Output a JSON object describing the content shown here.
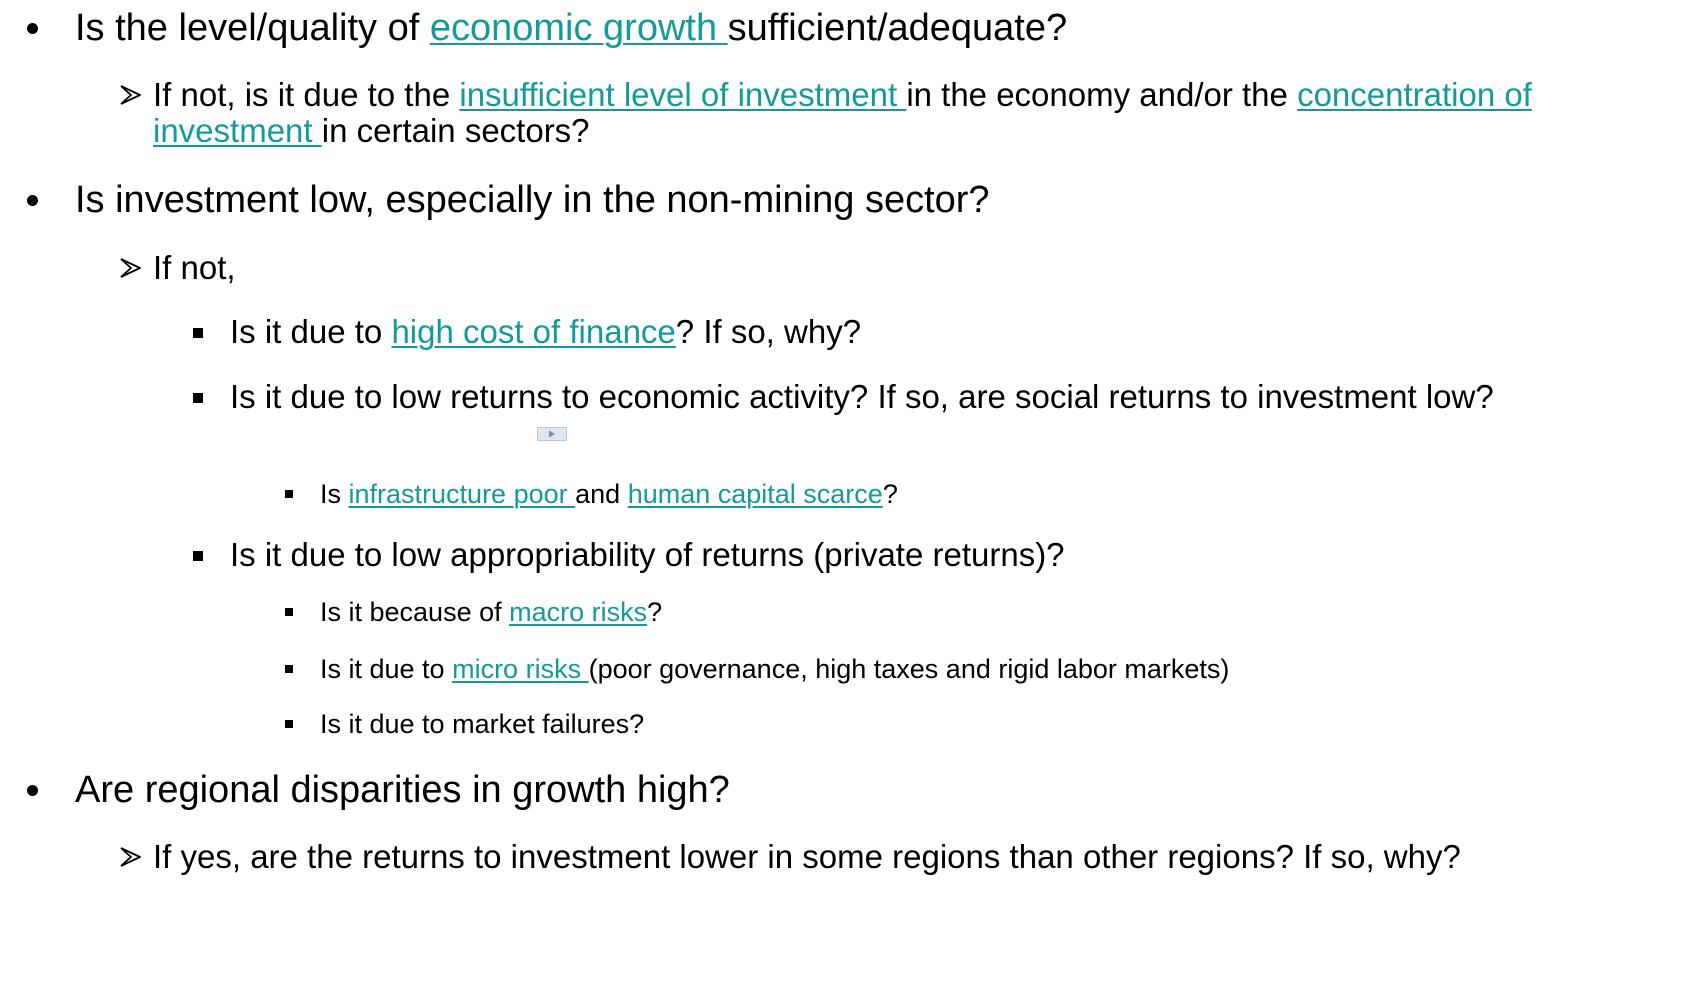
{
  "items": [
    {
      "level": 1,
      "segments": [
        {
          "text": "Is the level/quality of "
        },
        {
          "text": "economic growth ",
          "link": true
        },
        {
          "text": "sufficient/adequate?"
        }
      ]
    },
    {
      "level": 2,
      "segments": [
        {
          "text": "If not, is it due to the "
        },
        {
          "text": "insufficient level of investment ",
          "link": true
        },
        {
          "text": "in the economy and/or the "
        },
        {
          "text": "concentration of investment ",
          "link": true
        },
        {
          "text": "in certain sectors?"
        }
      ]
    },
    {
      "level": 1,
      "segments": [
        {
          "text": "Is investment low, especially in the non-mining sector?"
        }
      ]
    },
    {
      "level": 2,
      "segments": [
        {
          "text": "If not,"
        }
      ]
    },
    {
      "level": 3,
      "segments": [
        {
          "text": "Is it due to "
        },
        {
          "text": "high cost of finance",
          "link": true
        },
        {
          "text": "? If so, why?"
        }
      ]
    },
    {
      "level": 3,
      "segments": [
        {
          "text": "Is it due to  low returns to  economic activity? If so, are social returns to investment low?"
        }
      ]
    },
    {
      "level": 4,
      "segments": [
        {
          "text": "Is "
        },
        {
          "text": "infrastructure poor ",
          "link": true
        },
        {
          "text": "and "
        },
        {
          "text": "human capital scarce",
          "link": true
        },
        {
          "text": "?"
        }
      ]
    },
    {
      "level": 3,
      "segments": [
        {
          "text": "Is it due to low appropriability of returns (private returns)?"
        }
      ]
    },
    {
      "level": 4,
      "segments": [
        {
          "text": "Is it  because of "
        },
        {
          "text": "macro risks",
          "link": true
        },
        {
          "text": "?"
        }
      ]
    },
    {
      "level": 4,
      "segments": [
        {
          "text": "Is it due to "
        },
        {
          "text": "micro risks ",
          "link": true
        },
        {
          "text": "(poor governance, high taxes and rigid labor markets)"
        }
      ]
    },
    {
      "level": 4,
      "segments": [
        {
          "text": "Is it due to market failures?"
        }
      ]
    },
    {
      "level": 1,
      "segments": [
        {
          "text": "Are regional disparities in growth high?"
        }
      ]
    },
    {
      "level": 2,
      "segments": [
        {
          "text": "If yes, are the returns to investment lower in some regions than other regions? If so, why?"
        }
      ]
    }
  ]
}
